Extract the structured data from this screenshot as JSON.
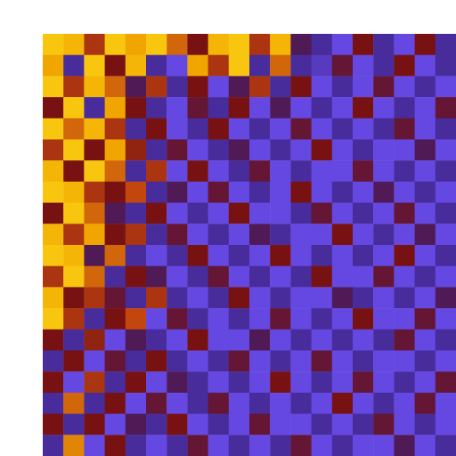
{
  "chart_data": {
    "type": "heatmap",
    "tick_labels": false,
    "grid": false,
    "zlim": [
      0,
      1
    ],
    "cells": [
      [
        0.9,
        0.85,
        0.6,
        0.9,
        0.8,
        0.9,
        0.7,
        0.5,
        0.85,
        0.9,
        0.6,
        0.85,
        0.4,
        0.3,
        0.2,
        0.5,
        0.3,
        0.2,
        0.5,
        0.3
      ],
      [
        0.8,
        0.3,
        0.9,
        0.5,
        0.85,
        0.3,
        0.2,
        0.8,
        0.6,
        0.9,
        0.3,
        0.7,
        0.3,
        0.25,
        0.45,
        0.2,
        0.3,
        0.5,
        0.2,
        0.3
      ],
      [
        0.9,
        0.6,
        0.85,
        0.7,
        0.4,
        0.6,
        0.3,
        0.5,
        0.2,
        0.4,
        0.6,
        0.3,
        0.5,
        0.2,
        0.3,
        0.2,
        0.45,
        0.2,
        0.3,
        0.2
      ],
      [
        0.5,
        0.9,
        0.3,
        0.8,
        0.5,
        0.3,
        0.2,
        0.45,
        0.3,
        0.5,
        0.2,
        0.4,
        0.2,
        0.3,
        0.2,
        0.5,
        0.2,
        0.3,
        0.2,
        0.45
      ],
      [
        0.9,
        0.7,
        0.85,
        0.6,
        0.3,
        0.5,
        0.2,
        0.3,
        0.5,
        0.2,
        0.3,
        0.2,
        0.45,
        0.2,
        0.3,
        0.2,
        0.3,
        0.45,
        0.2,
        0.3
      ],
      [
        0.6,
        0.9,
        0.5,
        0.8,
        0.55,
        0.3,
        0.45,
        0.2,
        0.3,
        0.4,
        0.2,
        0.3,
        0.2,
        0.5,
        0.2,
        0.3,
        0.2,
        0.2,
        0.4,
        0.2
      ],
      [
        0.85,
        0.5,
        0.9,
        0.7,
        0.3,
        0.6,
        0.2,
        0.5,
        0.2,
        0.3,
        0.45,
        0.2,
        0.3,
        0.2,
        0.2,
        0.45,
        0.2,
        0.3,
        0.2,
        0.3
      ],
      [
        0.9,
        0.85,
        0.6,
        0.5,
        0.65,
        0.3,
        0.4,
        0.2,
        0.45,
        0.2,
        0.3,
        0.2,
        0.5,
        0.2,
        0.3,
        0.2,
        0.4,
        0.2,
        0.3,
        0.2
      ],
      [
        0.5,
        0.9,
        0.7,
        0.4,
        0.3,
        0.5,
        0.2,
        0.3,
        0.2,
        0.5,
        0.2,
        0.2,
        0.3,
        0.45,
        0.2,
        0.3,
        0.2,
        0.45,
        0.2,
        0.3
      ],
      [
        0.85,
        0.6,
        0.8,
        0.5,
        0.6,
        0.3,
        0.45,
        0.2,
        0.3,
        0.2,
        0.4,
        0.3,
        0.2,
        0.2,
        0.5,
        0.2,
        0.3,
        0.2,
        0.4,
        0.2
      ],
      [
        0.9,
        0.85,
        0.4,
        0.7,
        0.3,
        0.2,
        0.3,
        0.5,
        0.2,
        0.3,
        0.2,
        0.5,
        0.2,
        0.3,
        0.2,
        0.3,
        0.2,
        0.5,
        0.2,
        0.3
      ],
      [
        0.6,
        0.9,
        0.7,
        0.3,
        0.5,
        0.4,
        0.2,
        0.3,
        0.45,
        0.2,
        0.3,
        0.2,
        0.3,
        0.5,
        0.2,
        0.2,
        0.45,
        0.2,
        0.3,
        0.2
      ],
      [
        0.85,
        0.5,
        0.6,
        0.45,
        0.3,
        0.6,
        0.3,
        0.2,
        0.3,
        0.5,
        0.2,
        0.3,
        0.2,
        0.2,
        0.4,
        0.3,
        0.2,
        0.3,
        0.2,
        0.4
      ],
      [
        0.9,
        0.6,
        0.3,
        0.5,
        0.65,
        0.2,
        0.45,
        0.3,
        0.2,
        0.3,
        0.2,
        0.45,
        0.2,
        0.3,
        0.2,
        0.5,
        0.2,
        0.2,
        0.45,
        0.2
      ],
      [
        0.5,
        0.3,
        0.55,
        0.2,
        0.4,
        0.3,
        0.2,
        0.5,
        0.2,
        0.2,
        0.4,
        0.2,
        0.3,
        0.2,
        0.3,
        0.2,
        0.3,
        0.45,
        0.2,
        0.3
      ],
      [
        0.3,
        0.5,
        0.2,
        0.45,
        0.3,
        0.5,
        0.3,
        0.2,
        0.3,
        0.45,
        0.2,
        0.3,
        0.2,
        0.45,
        0.2,
        0.3,
        0.2,
        0.2,
        0.3,
        0.2
      ],
      [
        0.5,
        0.2,
        0.6,
        0.3,
        0.5,
        0.2,
        0.4,
        0.3,
        0.2,
        0.3,
        0.2,
        0.5,
        0.2,
        0.3,
        0.2,
        0.45,
        0.2,
        0.3,
        0.2,
        0.45
      ],
      [
        0.3,
        0.7,
        0.3,
        0.5,
        0.2,
        0.45,
        0.2,
        0.3,
        0.45,
        0.2,
        0.3,
        0.2,
        0.3,
        0.2,
        0.5,
        0.2,
        0.3,
        0.2,
        0.45,
        0.2
      ],
      [
        0.5,
        0.3,
        0.5,
        0.2,
        0.4,
        0.3,
        0.5,
        0.2,
        0.3,
        0.2,
        0.45,
        0.2,
        0.2,
        0.3,
        0.2,
        0.3,
        0.45,
        0.2,
        0.3,
        0.2
      ],
      [
        0.3,
        0.75,
        0.2,
        0.5,
        0.3,
        0.2,
        0.3,
        0.45,
        0.2,
        0.3,
        0.2,
        0.3,
        0.45,
        0.2,
        0.3,
        0.2,
        0.2,
        0.4,
        0.2,
        0.3
      ]
    ]
  }
}
